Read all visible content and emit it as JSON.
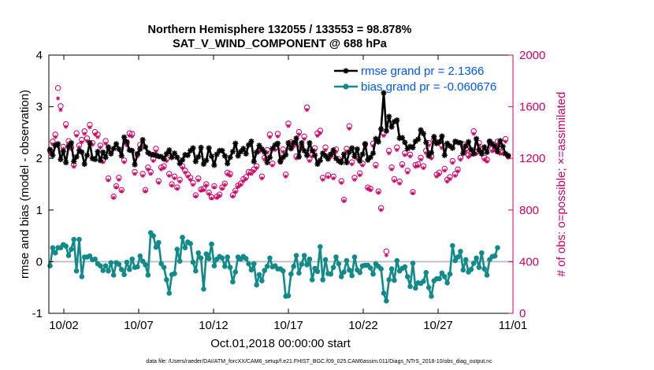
{
  "chart_data": {
    "type": "line",
    "title": [
      "Northern Hemisphere 132055 / 133553 = 98.878%",
      "SAT_V_WIND_COMPONENT @ 688 hPa"
    ],
    "xlabel": "Oct.01,2018 00:00:00 start",
    "ylabel": "rmse and bias (model - observation)",
    "ylabel_right": "# of obs: o=possible; ×=assimilated",
    "xlim": [
      0,
      31
    ],
    "ylim": [
      -1,
      4
    ],
    "ylim_right": [
      0,
      2000
    ],
    "x_ticks": [
      1,
      6,
      11,
      16,
      21,
      26,
      31
    ],
    "x_tick_labels": [
      "10/02",
      "10/07",
      "10/12",
      "10/17",
      "10/22",
      "10/27",
      "11/01"
    ],
    "y_ticks": [
      -1,
      0,
      1,
      2,
      3,
      4
    ],
    "y_tick_labels": [
      "-1",
      "0",
      "1",
      "2",
      "3",
      "4"
    ],
    "y_right_ticks": [
      0,
      400,
      800,
      1200,
      1600,
      2000
    ],
    "y_right_tick_labels": [
      "0",
      "400",
      "800",
      "1200",
      "1600",
      "2000"
    ],
    "footer": "data file: /Users/raeder/DAI/ATM_forcXX/CAM6_setup/f.e21.FHIST_BGC.f09_025.CAM6assim.011/Diags_NTrS_2018-10/obs_diag_output.nc",
    "series": [
      {
        "name": "rmse grand pr = 2.1366",
        "color": "#000000",
        "marker": "asterisk",
        "values": [
          2.17,
          2.06,
          2.25,
          2.28,
          1.98,
          2.14,
          1.92,
          2.23,
          2.3,
          1.94,
          2.03,
          2.15,
          2.12,
          1.89,
          2.06,
          2.3,
          2.0,
          1.98,
          2.13,
          1.96,
          2.12,
          2.02,
          2.22,
          2.09,
          2.19,
          2.28,
          2.18,
          2.05,
          2.41,
          2.32,
          2.16,
          2.15,
          1.88,
          2.09,
          2.18,
          2.36,
          2.22,
          2.11,
          2.08,
          2.07,
          2.06,
          2.04,
          2.03,
          1.99,
          2.09,
          2.16,
          2.02,
          2.1,
          2.02,
          1.9,
          1.97,
          2.07,
          2.06,
          2.15,
          2.2,
          1.94,
          2.03,
          2.21,
          1.89,
          1.96,
          2.2,
          2.04,
          1.87,
          2.08,
          2.15,
          2.15,
          2.05,
          1.9,
          2.02,
          2.13,
          2.29,
          2.05,
          2.13,
          2.19,
          2.09,
          2.26,
          2.33,
          1.94,
          2.12,
          2.25,
          2.18,
          2.12,
          1.92,
          2.02,
          2.19,
          2.26,
          2.29,
          1.94,
          2.02,
          2.07,
          2.3,
          2.19,
          2.3,
          2.39,
          2.03,
          2.3,
          2.15,
          2.06,
          2.3,
          2.15,
          2.06,
          1.89,
          1.96,
          2.1,
          2.05,
          1.99,
          2.08,
          2.16,
          2.0,
          1.95,
          1.92,
          2.08,
          1.92,
          2.12,
          2.2,
          2.04,
          2.18,
          1.95,
          2.08,
          2.28,
          1.97,
          2.02,
          2.1,
          2.38,
          2.32,
          2.57,
          3.27,
          2.53,
          2.81,
          2.61,
          2.71,
          2.74,
          2.39,
          2.4,
          2.31,
          2.19,
          2.23,
          2.21,
          2.33,
          2.37,
          2.55,
          2.48,
          2.31,
          2.05,
          2.11,
          2.42,
          2.29,
          2.32,
          2.43,
          2.06,
          2.29,
          2.24,
          2.2,
          2.33,
          2.31,
          2.3,
          2.1,
          2.24,
          2.32,
          2.17,
          2.09,
          2.38,
          2.16,
          2.09,
          2.22,
          2.12,
          2.33,
          2.28,
          2.23,
          2.13,
          2.34,
          2.23,
          2.09,
          2.05
        ]
      },
      {
        "name": "bias grand pr = -0.060676",
        "color": "#138a8a",
        "marker": "circle",
        "values": [
          -0.08,
          0.27,
          0.17,
          0.27,
          0.27,
          0.33,
          0.3,
          0.12,
          0.24,
          0.43,
          -0.18,
          0.43,
          -0.29,
          0.09,
          0.09,
          0.11,
          0.04,
          0.05,
          -0.04,
          -0.08,
          -0.17,
          -0.08,
          -0.18,
          -0.02,
          -0.26,
          -0.02,
          -0.05,
          -0.15,
          -0.25,
          -0.01,
          -0.15,
          0.05,
          -0.11,
          -0.1,
          0.11,
          0.01,
          -0.06,
          -0.26,
          0.56,
          0.5,
          0.28,
          0.37,
          -0.04,
          -0.11,
          -0.35,
          -0.61,
          -0.25,
          -0.23,
          0.24,
          0.01,
          0.47,
          0.27,
          0.38,
          0.35,
          -0.01,
          -0.18,
          0.17,
          0.07,
          -0.53,
          0.15,
          0.06,
          0.34,
          -0.08,
          0.05,
          0.1,
          0.07,
          -0.09,
          0.09,
          -0.11,
          -0.39,
          -0.2,
          0.09,
          0.05,
          0.1,
          0.06,
          -0.04,
          -0.16,
          -0.04,
          -0.45,
          -0.25,
          -0.37,
          -0.17,
          -0.09,
          0.07,
          -0.1,
          -0.08,
          -0.14,
          -0.14,
          -0.18,
          -0.67,
          -0.66,
          -0.24,
          -0.09,
          0.12,
          -0.22,
          -0.05,
          0.12,
          -0.06,
          0.05,
          -0.35,
          -0.13,
          -0.19,
          0.29,
          -0.35,
          0.04,
          -0.23,
          -0.24,
          -0.11,
          0.09,
          -0.04,
          -0.29,
          -0.2,
          0.02,
          -0.16,
          -0.27,
          0.09,
          -0.16,
          -0.21,
          -0.08,
          -0.07,
          -0.07,
          -0.12,
          -0.24,
          -0.04,
          -0.09,
          -0.14,
          -0.61,
          -0.76,
          -0.35,
          -0.14,
          -0.36,
          0.02,
          -0.18,
          -0.13,
          -0.1,
          -0.29,
          -0.48,
          -0.03,
          -0.51,
          -0.41,
          -0.42,
          -0.38,
          -0.21,
          -0.5,
          -0.67,
          -0.37,
          -0.33,
          -0.33,
          -0.22,
          -0.29,
          -0.41,
          -0.24,
          0.31,
          0.02,
          0.09,
          0.2,
          -0.16,
          0.04,
          -0.2,
          -0.15,
          -0.03,
          0.07,
          -0.11,
          0.17,
          -0.14,
          -0.26,
          0.04,
          0.1,
          0.11,
          0.27
        ]
      },
      {
        "name": "possible obs count",
        "axis": "right",
        "color": "#cc0066",
        "marker": "open-circle",
        "values": [
          1260,
          1330,
          1385,
          1745,
          1605,
          1290,
          1465,
          1335,
          1285,
          1150,
          1395,
          1300,
          1345,
          1410,
          1355,
          1460,
          1320,
          1405,
          1385,
          1300,
          1185,
          1335,
          1045,
          1255,
          905,
          985,
          1050,
          955,
          1185,
          1320,
          1395,
          1390,
          1095,
          1230,
          1305,
          1080,
          955,
          1130,
          1095,
          1195,
          1275,
          1025,
          1130,
          1140,
          1195,
          1080,
          1000,
          1060,
          975,
          1035,
          1140,
          1105,
          1075,
          1050,
          1010,
          915,
          1045,
          960,
          965,
          1000,
          935,
          900,
          985,
          905,
          920,
          975,
          1005,
          1090,
          1080,
          915,
          950,
          990,
          1005,
          1040,
          1055,
          1095,
          1095,
          1115,
          1140,
          1270,
          1060,
          1205,
          1265,
          1385,
          1160,
          1285,
          1390,
          1180,
          1270,
          1075,
          1470,
          1325,
          1310,
          1215,
          1405,
          1295,
          1370,
          1595,
          1195,
          1230,
          1280,
          1395,
          1415,
          1050,
          1285,
          1070,
          1225,
          1060,
          1270,
          1195,
          1025,
          880,
          1275,
          1450,
          1170,
          1050,
          1210,
          1085,
          1160,
          1310,
          975,
          965,
          1315,
          1150,
          945,
          815,
          1395,
          480,
          1260,
          1130,
          1040,
          1285,
          1020,
          1155,
          1240,
          1105,
          1230,
          940,
          1150,
          1155,
          1205,
          1140,
          1260,
          1320,
          1215,
          1345,
          1075,
          1090,
          1300,
          1120,
          1035,
          1055,
          1180,
          1080,
          1115,
          1205,
          1310,
          1275,
          1225,
          1240,
          1410,
          1250,
          1320,
          1270,
          1205,
          1190,
          1330,
          1275,
          1280,
          1330,
          1250,
          1250,
          1350,
          1220
        ]
      },
      {
        "name": "assimilated obs count",
        "axis": "right",
        "color": "#cc0066",
        "marker": "asterisk",
        "values": [
          1240,
          1310,
          1365,
          1665,
          1575,
          1275,
          1445,
          1315,
          1270,
          1135,
          1375,
          1285,
          1325,
          1390,
          1335,
          1440,
          1305,
          1385,
          1365,
          1285,
          1170,
          1315,
          1030,
          1240,
          895,
          975,
          1035,
          945,
          1170,
          1300,
          1375,
          1370,
          1080,
          1215,
          1285,
          1065,
          945,
          1115,
          1080,
          1180,
          1255,
          1010,
          1115,
          1125,
          1180,
          1065,
          990,
          1045,
          965,
          1020,
          1125,
          1090,
          1060,
          1035,
          995,
          905,
          1030,
          950,
          955,
          990,
          925,
          890,
          975,
          895,
          910,
          965,
          995,
          1075,
          1065,
          905,
          940,
          980,
          995,
          1025,
          1040,
          1080,
          1080,
          1100,
          1125,
          1250,
          1045,
          1190,
          1245,
          1365,
          1145,
          1265,
          1370,
          1165,
          1250,
          1060,
          1450,
          1305,
          1290,
          1200,
          1385,
          1280,
          1350,
          1575,
          1180,
          1215,
          1260,
          1375,
          1395,
          1035,
          1265,
          1055,
          1210,
          1045,
          1250,
          1180,
          1010,
          870,
          1255,
          1430,
          1155,
          1035,
          1195,
          1070,
          1145,
          1290,
          965,
          955,
          1295,
          1135,
          935,
          800,
          1375,
          450,
          1240,
          1115,
          1025,
          1265,
          1005,
          1140,
          1225,
          1090,
          1215,
          930,
          1135,
          1140,
          1190,
          1125,
          1240,
          1300,
          1200,
          1325,
          1060,
          1075,
          1280,
          1105,
          1020,
          1040,
          1165,
          1065,
          1100,
          1190,
          1290,
          1255,
          1210,
          1225,
          1390,
          1235,
          1300,
          1250,
          1190,
          1175,
          1310,
          1255,
          1260,
          1310,
          1235,
          1235,
          1330,
          1205
        ]
      }
    ]
  },
  "colors": {
    "rmse": "#000000",
    "bias": "#138a8a",
    "obs": "#cc0066",
    "legend_text": "#0055ff",
    "zero_line": "#c0c0c0"
  }
}
